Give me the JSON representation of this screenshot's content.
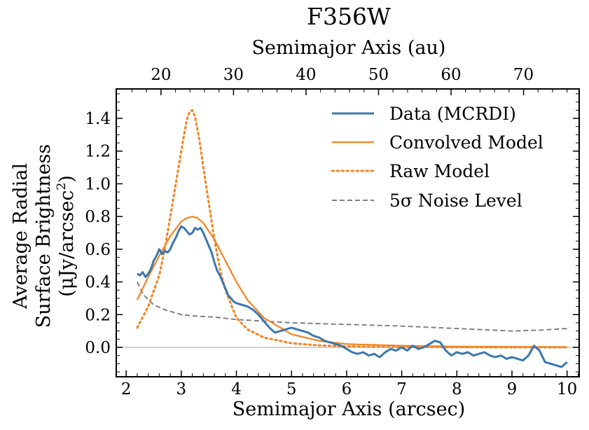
{
  "chart_data": {
    "type": "line",
    "title": "F356W",
    "xlabel": "Semimajor Axis (arcsec)",
    "x2label": "Semimajor Axis (au)",
    "ylabel_lines": [
      "Average Radial",
      "Surface Brightness"
    ],
    "ylabel_unit_prefix": "(μJy/arcsec",
    "ylabel_unit_sup": "2",
    "ylabel_unit_suffix": ")",
    "xlim": [
      1.82,
      10.22
    ],
    "ylim": [
      -0.18,
      1.58
    ],
    "x_ticks": [
      2,
      3,
      4,
      5,
      6,
      7,
      8,
      9,
      10
    ],
    "y_ticks": [
      0.0,
      0.2,
      0.4,
      0.6,
      0.8,
      1.0,
      1.2,
      1.4
    ],
    "y_tick_labels": [
      "0.0",
      "0.2",
      "0.4",
      "0.6",
      "0.8",
      "1.0",
      "1.2",
      "1.4"
    ],
    "au_per_arcsec": 7.6,
    "x2_ticks": [
      20,
      30,
      40,
      50,
      60,
      70
    ],
    "grid": false,
    "legend_position": "top-right",
    "zero_line": 0,
    "colors": {
      "data": "#3a78b0",
      "model": "#f5831f",
      "noise": "#808080",
      "zero": "#c0c0c0"
    },
    "series": [
      {
        "name": "Data (MCRDI)",
        "style": "solid",
        "x": [
          2.2,
          2.25,
          2.3,
          2.35,
          2.4,
          2.45,
          2.5,
          2.55,
          2.6,
          2.65,
          2.7,
          2.75,
          2.8,
          2.85,
          2.9,
          2.95,
          3.0,
          3.05,
          3.1,
          3.15,
          3.2,
          3.25,
          3.3,
          3.35,
          3.4,
          3.45,
          3.5,
          3.55,
          3.6,
          3.65,
          3.7,
          3.75,
          3.8,
          3.85,
          3.9,
          3.95,
          4.0,
          4.1,
          4.2,
          4.3,
          4.4,
          4.5,
          4.6,
          4.7,
          4.8,
          4.9,
          5.0,
          5.1,
          5.2,
          5.3,
          5.4,
          5.5,
          5.6,
          5.7,
          5.8,
          5.9,
          6.0,
          6.1,
          6.2,
          6.3,
          6.4,
          6.5,
          6.6,
          6.7,
          6.8,
          6.9,
          7.0,
          7.1,
          7.2,
          7.3,
          7.4,
          7.5,
          7.6,
          7.7,
          7.8,
          7.9,
          8.0,
          8.1,
          8.2,
          8.3,
          8.4,
          8.5,
          8.6,
          8.7,
          8.8,
          8.9,
          9.0,
          9.1,
          9.2,
          9.3,
          9.4,
          9.5,
          9.6,
          9.7,
          9.8,
          9.9,
          10.0
        ],
        "y": [
          0.45,
          0.44,
          0.46,
          0.43,
          0.45,
          0.48,
          0.53,
          0.56,
          0.6,
          0.57,
          0.59,
          0.58,
          0.6,
          0.64,
          0.67,
          0.71,
          0.74,
          0.73,
          0.71,
          0.69,
          0.7,
          0.73,
          0.72,
          0.73,
          0.7,
          0.66,
          0.62,
          0.58,
          0.52,
          0.47,
          0.44,
          0.4,
          0.36,
          0.32,
          0.3,
          0.28,
          0.27,
          0.26,
          0.25,
          0.23,
          0.2,
          0.16,
          0.12,
          0.09,
          0.1,
          0.11,
          0.12,
          0.11,
          0.1,
          0.09,
          0.07,
          0.06,
          0.04,
          0.03,
          0.02,
          0.01,
          -0.01,
          -0.03,
          -0.04,
          -0.03,
          -0.05,
          -0.04,
          -0.06,
          -0.03,
          -0.01,
          -0.02,
          0.0,
          -0.02,
          0.01,
          -0.01,
          0.0,
          0.02,
          0.04,
          0.03,
          -0.02,
          -0.05,
          -0.03,
          -0.04,
          -0.03,
          -0.05,
          -0.04,
          -0.03,
          -0.05,
          -0.06,
          -0.05,
          -0.07,
          -0.06,
          -0.07,
          -0.08,
          -0.05,
          0.01,
          -0.02,
          -0.09,
          -0.1,
          -0.11,
          -0.12,
          -0.09
        ]
      },
      {
        "name": "Convolved Model",
        "style": "solid",
        "x": [
          2.2,
          2.4,
          2.6,
          2.8,
          3.0,
          3.1,
          3.2,
          3.3,
          3.4,
          3.6,
          3.8,
          4.0,
          4.2,
          4.5,
          5.0,
          5.5,
          6.0,
          6.5,
          7.0,
          8.0,
          9.0,
          10.0
        ],
        "y": [
          0.29,
          0.43,
          0.56,
          0.68,
          0.77,
          0.79,
          0.8,
          0.79,
          0.76,
          0.66,
          0.53,
          0.4,
          0.29,
          0.18,
          0.08,
          0.04,
          0.02,
          0.015,
          0.01,
          0.005,
          0.003,
          0.002
        ]
      },
      {
        "name": "Raw Model",
        "style": "dotted",
        "x": [
          2.2,
          2.4,
          2.6,
          2.7,
          2.8,
          2.9,
          3.0,
          3.05,
          3.1,
          3.15,
          3.2,
          3.25,
          3.3,
          3.35,
          3.4,
          3.5,
          3.6,
          3.7,
          3.8,
          4.0,
          4.2,
          4.5,
          5.0,
          5.5,
          6.0,
          7.0,
          8.0,
          9.0,
          10.0
        ],
        "y": [
          0.12,
          0.25,
          0.44,
          0.6,
          0.8,
          1.0,
          1.2,
          1.3,
          1.39,
          1.44,
          1.45,
          1.41,
          1.32,
          1.22,
          1.1,
          0.88,
          0.66,
          0.48,
          0.35,
          0.18,
          0.11,
          0.06,
          0.025,
          0.012,
          0.006,
          0.002,
          0.001,
          0.0,
          0.0
        ]
      },
      {
        "name": "5σ Noise Level",
        "style": "dashed",
        "x": [
          2.2,
          2.3,
          2.4,
          2.5,
          2.7,
          3.0,
          3.3,
          3.6,
          4.0,
          4.5,
          5.0,
          5.5,
          6.0,
          7.0,
          8.0,
          9.0,
          9.5,
          10.0
        ],
        "y": [
          0.4,
          0.33,
          0.29,
          0.26,
          0.23,
          0.2,
          0.19,
          0.185,
          0.17,
          0.16,
          0.15,
          0.145,
          0.14,
          0.13,
          0.115,
          0.1,
          0.105,
          0.115
        ]
      }
    ]
  }
}
